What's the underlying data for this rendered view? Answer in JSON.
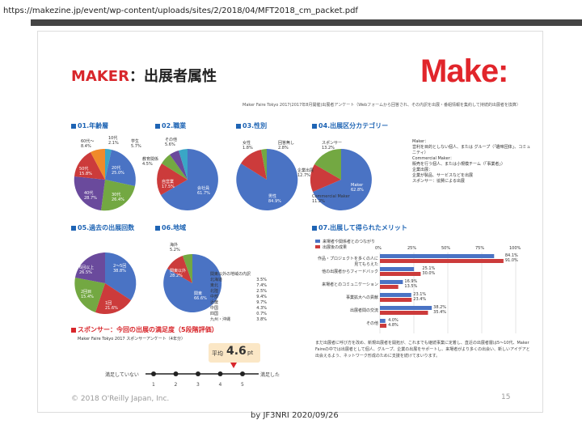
{
  "url": "https://makezine.jp/event/wp-content/uploads/sites/2/2018/04/MFT2018_cm_packet.pdf",
  "header": {
    "maker": "MAKER",
    "subtitle": "：出展者属性",
    "logo": "Make:"
  },
  "survey": "Maker Faire Tokyo 2017(2017年8月開催)出展者アンケート（Webフォームから回答され、その内訳を出展・番組情報を集約して持続的出展者を換算）",
  "sections": {
    "age": "01.年齢層",
    "job": "02.職業",
    "gender": "03.性別",
    "category": "04.出展区分カテゴリー",
    "count": "05.過去の出展回数",
    "region": "06.地域",
    "merit": "07.出展して得られたメリット",
    "sponsor": "スポンサー：今回の出展の満足度（5段階評価）"
  },
  "age_labels": [
    {
      "text": "60代〜",
      "v": "8.4%"
    },
    {
      "text": "10代",
      "v": "2.1%"
    },
    {
      "text": "20代",
      "v": "25.0%"
    },
    {
      "text": "30代",
      "v": "26.4%"
    },
    {
      "text": "40代",
      "v": "28.7%"
    },
    {
      "text": "50代",
      "v": "15.8%"
    }
  ],
  "job_labels": [
    {
      "text": "その他",
      "v": "5.6%"
    },
    {
      "text": "学生",
      "v": "5.7%"
    },
    {
      "text": "教育関係",
      "v": "4.5%"
    },
    {
      "text": "自営業",
      "v": "17.5%"
    },
    {
      "text": "会社員",
      "v": "61.7%"
    }
  ],
  "gender_labels": [
    {
      "text": "女性",
      "v": "1.8%"
    },
    {
      "text": "回答無し",
      "v": "2.8%"
    },
    {
      "text": "男性",
      "v": "84.9%"
    }
  ],
  "category_labels": [
    {
      "text": "スポンサー",
      "v": "13.2%"
    },
    {
      "text": "企業出展",
      "v": "12.7%"
    },
    {
      "text": "Commercial Maker",
      "v": "11.2%"
    },
    {
      "text": "Maker",
      "v": "62.8%"
    }
  ],
  "category_desc": [
    "Maker：",
    "営利を目的としない個人、または グループ（「趣味団体」、コミュニティ）",
    "Commercial Maker：",
    "販売を行う個人、または小規模チーム（「事業者」）",
    "企業出展：",
    "企業が製品、サービスなどを出展",
    "スポンサー：協賛による出展"
  ],
  "count_labels": [
    {
      "text": "6回以上",
      "v": "26.5%"
    },
    {
      "text": "2〜5回",
      "v": "38.8%"
    },
    {
      "text": "2回目",
      "v": "15.4%"
    },
    {
      "text": "1回",
      "v": "21.6%"
    }
  ],
  "region_labels": [
    {
      "text": "海外",
      "v": "5.2%"
    },
    {
      "text": "関東以外",
      "v": "28.2%"
    },
    {
      "text": "関東",
      "v": "66.6%"
    }
  ],
  "region_table_title": "関東以外の地域の内訳",
  "region_table": [
    [
      "北海道",
      "3.5%"
    ],
    [
      "東北",
      "7.4%"
    ],
    [
      "北陸",
      "2.5%"
    ],
    [
      "中部",
      "9.4%"
    ],
    [
      "近畿",
      "9.7%"
    ],
    [
      "中国",
      "4.3%"
    ],
    [
      "四国",
      "0.7%"
    ],
    [
      "九州・沖縄",
      "3.8%"
    ]
  ],
  "merit_legend": [
    "来場者や関係者とのつながり",
    "出展後の成果"
  ],
  "merit_axis": [
    "0%",
    "25%",
    "50%",
    "75%",
    "100%"
  ],
  "merit_rows": [
    {
      "label": "作品・プロジェクトを多くの人に見てもらえた",
      "v1": "84.1%",
      "v2": "91.0%",
      "a": 0.841,
      "b": 0.91
    },
    {
      "label": "他の出展者からフィードバック",
      "v1": "25.1%",
      "v2": "30.0%",
      "a": 0.251,
      "b": 0.3
    },
    {
      "label": "来場者とのコミュニケーション",
      "v1": "16.9%",
      "v2": "13.5%",
      "a": 0.169,
      "b": 0.135
    },
    {
      "label": "事業拡大への貢献",
      "v1": "23.1%",
      "v2": "23.4%",
      "a": 0.231,
      "b": 0.234
    },
    {
      "label": "出展者間の交流",
      "v1": "38.2%",
      "v2": "35.4%",
      "a": 0.382,
      "b": 0.354
    },
    {
      "label": "その他",
      "v1": "4.0%",
      "v2": "4.8%",
      "a": 0.04,
      "b": 0.048
    }
  ],
  "sponsor_survey": "Maker Faire Tokyo 2017 スポンサーアンケート（4年分）",
  "avg_label": "平均",
  "avg_value": "4.6",
  "avg_unit": "pt",
  "scale_low": "満足していない",
  "scale_high": "満足した",
  "scale_ticks": [
    "1",
    "2",
    "3",
    "4",
    "5"
  ],
  "scale_value": 4.6,
  "note": "まだ出展者に呼び方を改め、新規出展者を開拓が、これまでも継続事業に定着し、直近の出展者層は5〜10代、Maker Faireの中では出展者として個人、グループ、企業の出展をサポートし、来場者がより多くの出会い、新しいアイデアと出会えるよう、ネットワーク形成のために支援を続けてまいります。",
  "copyright": "© 2018 O'Reilly Japan, Inc.",
  "page_number": "15",
  "footer": "by JF3NRI 2020/09/26",
  "colors": {
    "blue": "#4a73c4",
    "red": "#cc3b3b",
    "green": "#73a842",
    "purple": "#6a4a9c",
    "teal": "#3aa6c6",
    "orange": "#f08a2a"
  }
}
